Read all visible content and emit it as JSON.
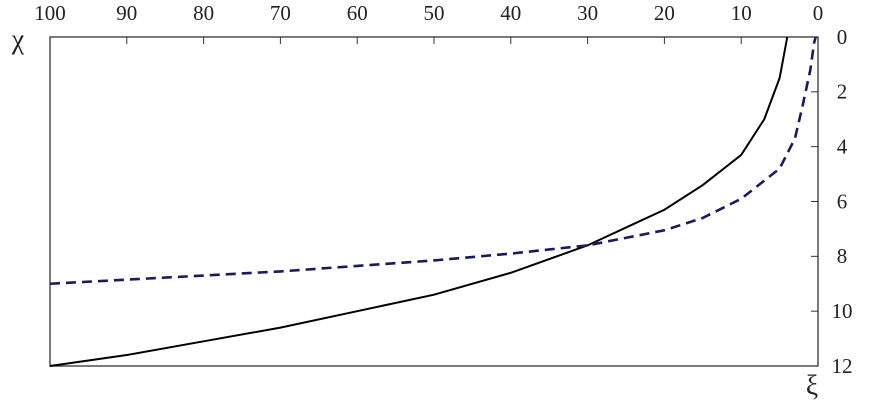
{
  "chart_data": {
    "type": "line",
    "x_label": "χ",
    "y_label": "ξ",
    "xlim": [
      100,
      0
    ],
    "ylim": [
      12,
      0
    ],
    "xticks": [
      100,
      90,
      80,
      70,
      60,
      50,
      40,
      30,
      20,
      10,
      0
    ],
    "yticks": [
      0,
      2,
      4,
      6,
      8,
      10,
      12
    ],
    "series": [
      {
        "color": "#000000",
        "dashed": false,
        "x": [
          100,
          90,
          80,
          70,
          60,
          50,
          40,
          30,
          20,
          15,
          10,
          7,
          5,
          4
        ],
        "values": [
          12,
          11.6,
          11.1,
          10.6,
          10.0,
          9.4,
          8.6,
          7.6,
          6.3,
          5.4,
          4.3,
          3.0,
          1.5,
          0
        ]
      },
      {
        "color": "#1a1a5e",
        "dashed": true,
        "x": [
          100,
          90,
          80,
          70,
          60,
          50,
          40,
          30,
          20,
          15,
          10,
          5,
          3,
          2,
          1,
          0.5,
          0.3
        ],
        "values": [
          9.0,
          8.85,
          8.7,
          8.55,
          8.35,
          8.15,
          7.9,
          7.6,
          7.05,
          6.6,
          5.9,
          4.8,
          3.7,
          2.5,
          1.2,
          0.2,
          0
        ]
      }
    ]
  }
}
